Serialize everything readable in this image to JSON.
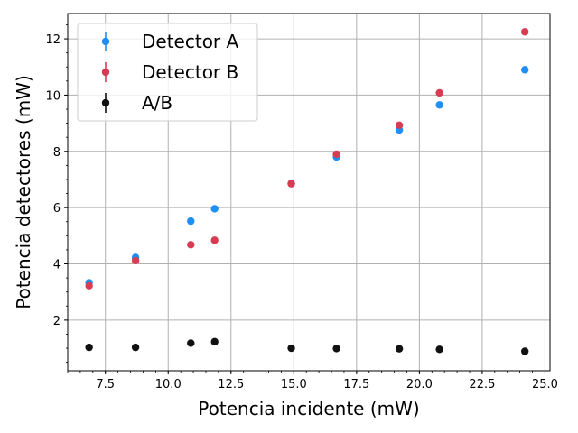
{
  "chart_data": {
    "type": "scatter",
    "xlabel": "Potencia incidente (mW)",
    "ylabel": "Potencia detectores (mW)",
    "xlim": [
      6.0,
      25.2
    ],
    "ylim": [
      0.2,
      12.9
    ],
    "x_ticks": [
      7.5,
      10.0,
      12.5,
      15.0,
      17.5,
      20.0,
      22.5,
      25.0
    ],
    "x_tick_labels": [
      "7.5",
      "10.0",
      "12.5",
      "15.0",
      "17.5",
      "20.0",
      "22.5",
      "25.0"
    ],
    "y_ticks": [
      2,
      4,
      6,
      8,
      10,
      12
    ],
    "y_tick_labels": [
      "2",
      "4",
      "6",
      "8",
      "10",
      "12"
    ],
    "grid": true,
    "legend_position": "top-left",
    "x": [
      6.85,
      8.7,
      10.9,
      11.85,
      14.9,
      16.7,
      19.2,
      20.8,
      24.2
    ],
    "series": [
      {
        "name": "Detector A",
        "color": "#1f8ff7",
        "values": [
          3.33,
          4.23,
          5.52,
          5.96,
          6.86,
          7.8,
          8.76,
          9.65,
          10.9
        ]
      },
      {
        "name": "Detector B",
        "color": "#d63c52",
        "values": [
          3.22,
          4.12,
          4.68,
          4.84,
          6.85,
          7.9,
          8.93,
          10.08,
          12.25
        ]
      },
      {
        "name": "A/B",
        "color": "#111111",
        "values": [
          1.03,
          1.03,
          1.18,
          1.23,
          1.0,
          0.99,
          0.98,
          0.96,
          0.89
        ]
      }
    ]
  }
}
